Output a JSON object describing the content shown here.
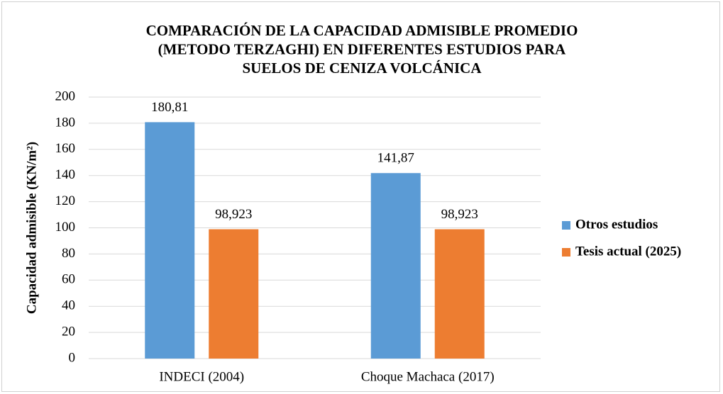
{
  "chart_data": {
    "type": "bar",
    "title": [
      "COMPARACIÓN DE LA CAPACIDAD ADMISIBLE PROMEDIO",
      "(METODO TERZAGHI)   EN DIFERENTES ESTUDIOS PARA",
      "SUELOS DE CENIZA VOLCÁNICA"
    ],
    "y_label": "Capacidad  admisible (KN/m²)",
    "categories": [
      "INDECI (2004)",
      "Choque Machaca (2017)"
    ],
    "series": [
      {
        "name": "Otros estudios",
        "color": "#5b9bd5",
        "values": [
          180.81,
          141.87
        ],
        "value_labels": [
          "180,81",
          "141,87"
        ]
      },
      {
        "name": "Tesis actual (2025)",
        "color": "#ed7d31",
        "values": [
          98.923,
          98.923
        ],
        "value_labels": [
          "98,923",
          "98,923"
        ]
      }
    ],
    "ylim": [
      0,
      200
    ],
    "yticks": [
      0,
      20,
      40,
      60,
      80,
      100,
      120,
      140,
      160,
      180,
      200
    ],
    "grid": true,
    "legend": "right"
  }
}
